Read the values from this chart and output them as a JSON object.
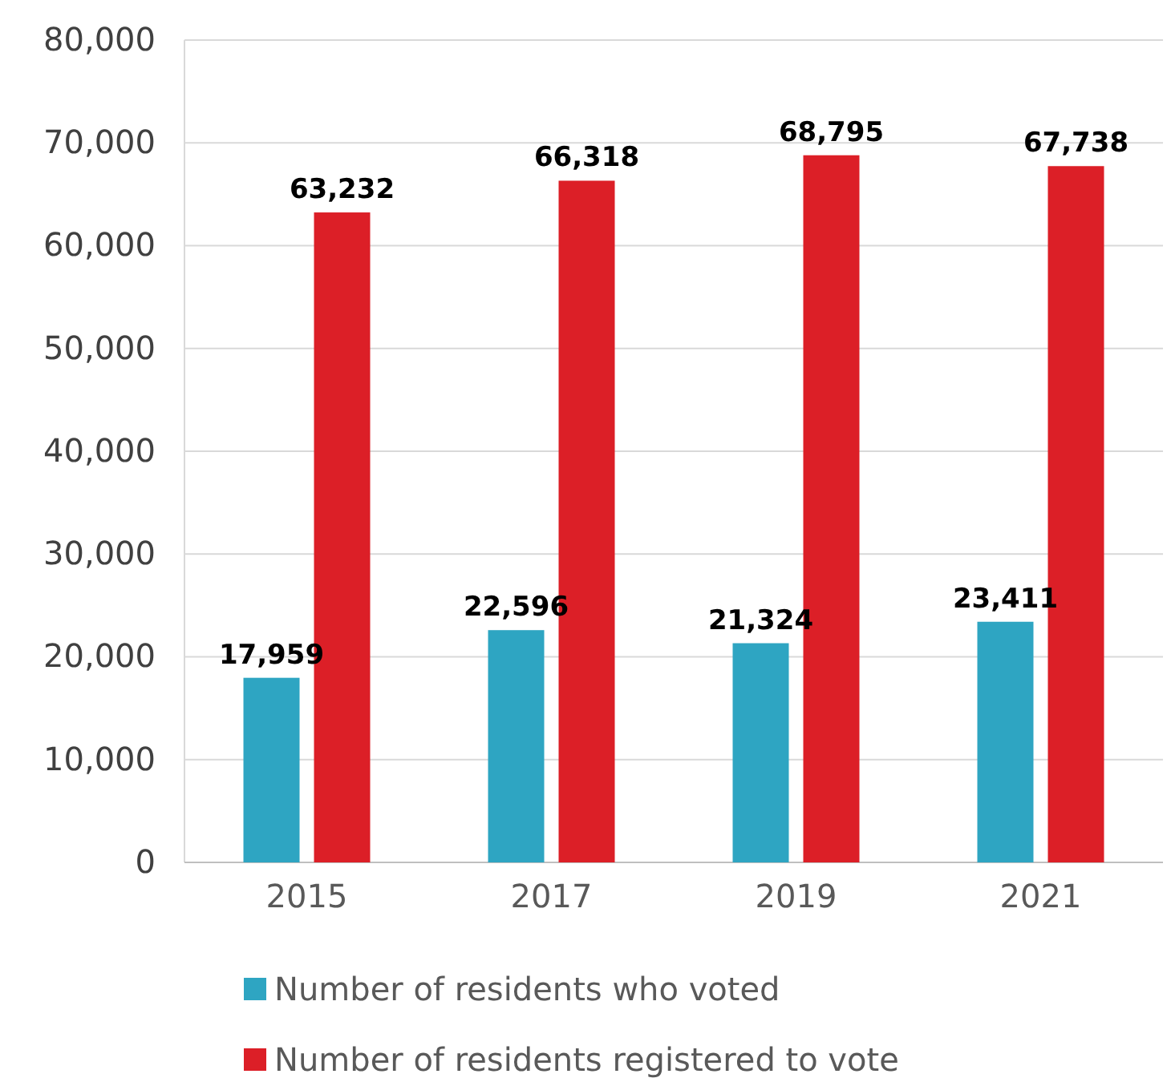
{
  "chart_data": {
    "type": "bar",
    "categories": [
      "2015",
      "2017",
      "2019",
      "2021"
    ],
    "series": [
      {
        "name": "Number of residents who voted",
        "color": "#2ea5c2",
        "values": [
          17959,
          22596,
          21324,
          23411
        ],
        "value_labels": [
          "17,959",
          "22,596",
          "21,324",
          "23,411"
        ]
      },
      {
        "name": "Number of residents registered to vote",
        "color": "#dc1f27",
        "values": [
          63232,
          66318,
          68795,
          67738
        ],
        "value_labels": [
          "63,232",
          "66,318",
          "68,795",
          "67,738"
        ]
      }
    ],
    "ylim": [
      0,
      80000
    ],
    "yticks": [
      {
        "value": 0,
        "label": "0"
      },
      {
        "value": 10000,
        "label": "10,000"
      },
      {
        "value": 20000,
        "label": "20,000"
      },
      {
        "value": 30000,
        "label": "30,000"
      },
      {
        "value": 40000,
        "label": "40,000"
      },
      {
        "value": 50000,
        "label": "50,000"
      },
      {
        "value": 60000,
        "label": "60,000"
      },
      {
        "value": 70000,
        "label": "70,000"
      },
      {
        "value": 80000,
        "label": "80,000"
      }
    ],
    "grid": "y",
    "legend": "bottom"
  }
}
